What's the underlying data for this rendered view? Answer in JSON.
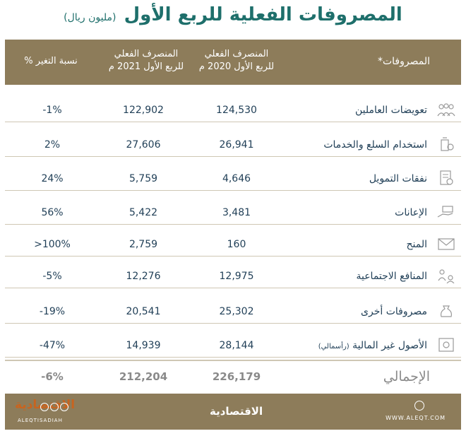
{
  "title": "المصروفات الفعلية للربع الأول",
  "subtitle": "(مليون ريال)",
  "headers": {
    "category": "المصروفات*",
    "col_2020_line1": "المنصرف الفعلي",
    "col_2020_line2": "للربع الأول 2020 م",
    "col_2021_line1": "المنصرف الفعلي",
    "col_2021_line2": "للربع الأول 2021 م",
    "col_pct": "نسبة التغير %"
  },
  "chart_data": {
    "type": "table",
    "title": "المصروفات الفعلية للربع الأول",
    "subtitle": "(مليون ريال)",
    "columns": [
      "المصروفات*",
      "المنصرف الفعلي للربع الأول 2020 م",
      "المنصرف الفعلي للربع الأول 2021 م",
      "نسبة التغير %"
    ],
    "rows": [
      {
        "category": "تعويضات العاملين",
        "v2020": "124,530",
        "v2021": "122,902",
        "pct": "-1%",
        "icon": "people-icon"
      },
      {
        "category": "استخدام السلع والخدمات",
        "v2020": "26,941",
        "v2021": "27,606",
        "pct": "2%",
        "icon": "goods-icon"
      },
      {
        "category": "نفقات التمويل",
        "v2020": "4,646",
        "v2021": "5,759",
        "pct": "24%",
        "icon": "document-icon"
      },
      {
        "category": "الإعانات",
        "v2020": "3,481",
        "v2021": "5,422",
        "pct": "56%",
        "icon": "hand-icon"
      },
      {
        "category": "المنح",
        "v2020": "160",
        "v2021": "2,759",
        "pct": ">100%",
        "icon": "envelope-icon"
      },
      {
        "category": "المنافع الاجتماعية",
        "v2020": "12,975",
        "v2021": "12,276",
        "pct": "-5%",
        "icon": "social-icon"
      },
      {
        "category": "مصروفات أخرى",
        "v2020": "25,302",
        "v2021": "20,541",
        "pct": "-19%",
        "icon": "money-bag-icon"
      },
      {
        "category": "الأصول غير المالية",
        "category_note": "(رأسمالي)",
        "v2020": "28,144",
        "v2021": "14,939",
        "pct": "-47%",
        "icon": "safe-icon"
      }
    ],
    "total": {
      "category": "الإجمالي",
      "v2020": "226,179",
      "v2021": "212,204",
      "pct": "-6%"
    }
  },
  "footer": {
    "brand": "الاقتصادية",
    "url": "WWW.ALEQT.COM",
    "logo_text": "الاقتصادية",
    "handle": "ALEQTISADIAH"
  },
  "colors": {
    "accent": "#8d7c5a",
    "title": "#1e6f6b",
    "text": "#1f3e56",
    "total": "#8a8a8a",
    "logo": "#c8641f"
  }
}
